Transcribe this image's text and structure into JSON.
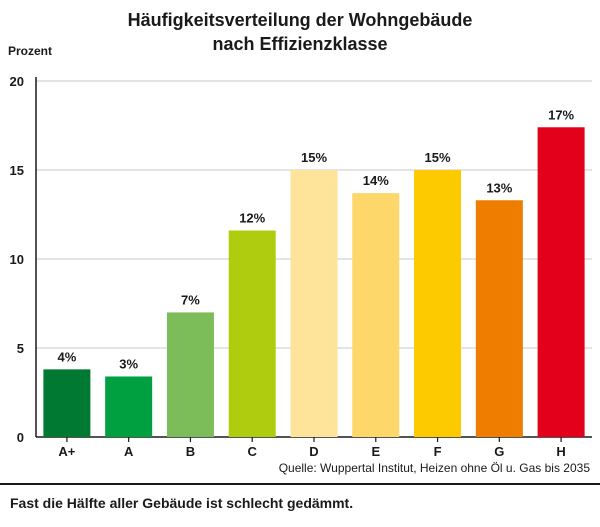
{
  "chart_data": {
    "type": "bar",
    "title_line1": "Häufigkeitsverteilung der Wohngebäude",
    "title_line2": "nach Effizienzklasse",
    "ylabel": "Prozent",
    "xlabel": "",
    "ylim": [
      0,
      20
    ],
    "yticks": [
      0,
      5,
      10,
      15,
      20
    ],
    "grid": true,
    "categories": [
      "A+",
      "A",
      "B",
      "C",
      "D",
      "E",
      "F",
      "G",
      "H"
    ],
    "values": [
      3.8,
      3.4,
      7.0,
      11.6,
      15.0,
      13.7,
      15.0,
      13.3,
      17.4
    ],
    "data_labels": [
      "4%",
      "3%",
      "7%",
      "12%",
      "15%",
      "14%",
      "15%",
      "13%",
      "17%"
    ],
    "colors": [
      "#007a33",
      "#00a040",
      "#7cbd5a",
      "#b0cc0e",
      "#fde49a",
      "#fdd76a",
      "#fdca00",
      "#ee7d00",
      "#e2001a"
    ]
  },
  "source": "Quelle: Wuppertal Institut, Heizen ohne Öl u. Gas bis 2035",
  "caption": "Fast die Hälfte aller Gebäude ist schlecht gedämmt."
}
